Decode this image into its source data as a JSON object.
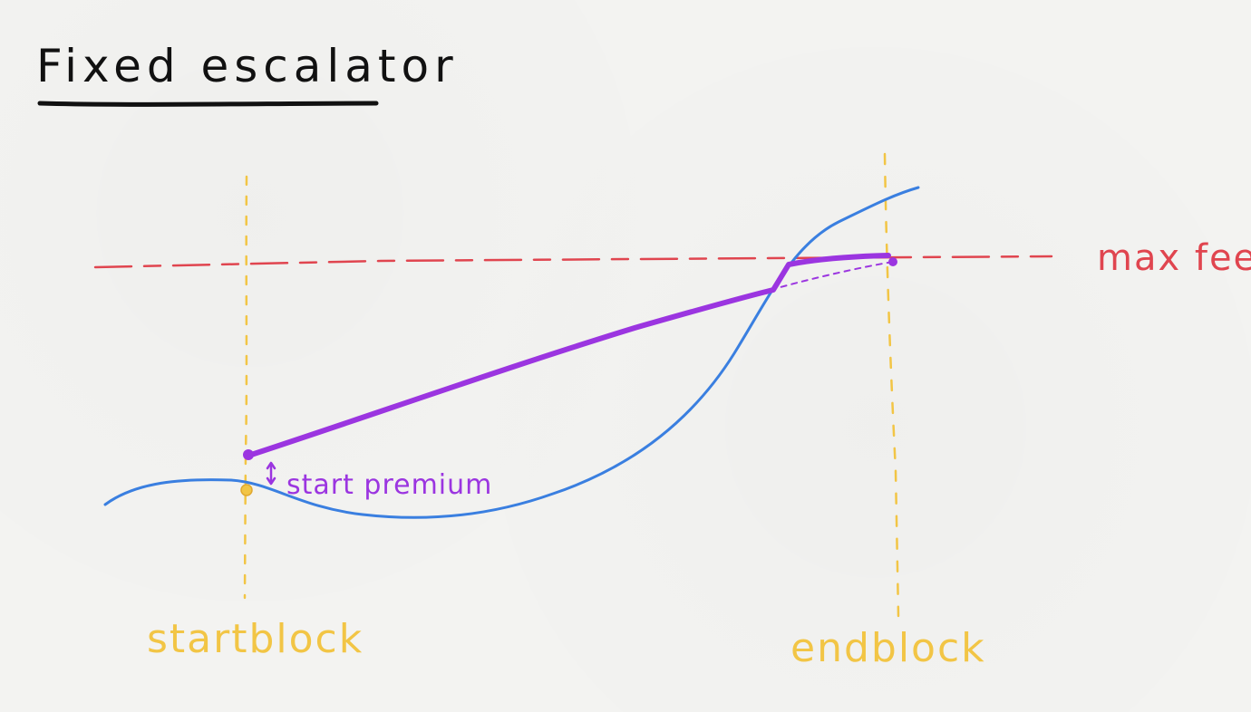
{
  "title": "Fixed escalator",
  "labels": {
    "max_fee": "max fee",
    "start_premium": "start premium",
    "start_block": "startblock",
    "end_block": "endblock"
  },
  "colors": {
    "ink": "#111111",
    "max_fee_line": "#e0454f",
    "base_fee_curve": "#3a7fe0",
    "escalator": "#9b35e0",
    "block_markers": "#f2c545"
  }
}
